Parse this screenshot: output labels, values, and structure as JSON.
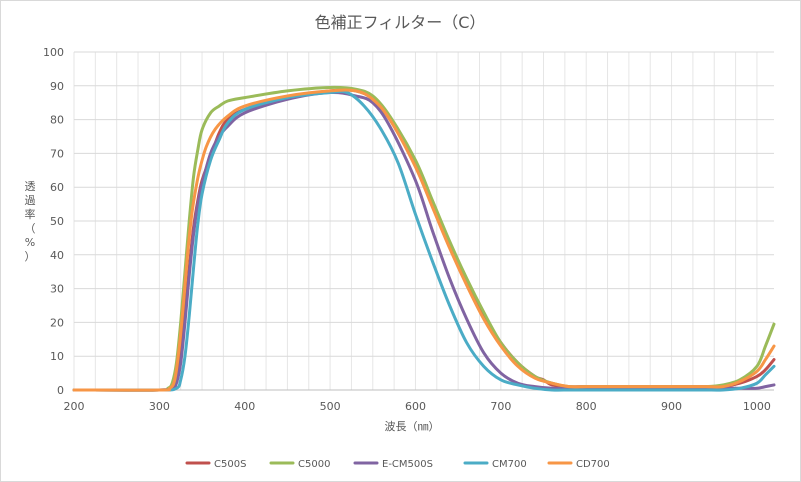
{
  "chart_data": {
    "type": "line",
    "title": "色補正フィルター（C）",
    "xlabel": "波長（㎚）",
    "ylabel": "透過率（%）",
    "xlim": [
      200,
      1020
    ],
    "ylim": [
      0,
      100
    ],
    "x_ticks": [
      200,
      300,
      400,
      500,
      600,
      700,
      800,
      900,
      1000
    ],
    "y_ticks": [
      0,
      10,
      20,
      30,
      40,
      50,
      60,
      70,
      80,
      90,
      100
    ],
    "x_minor_step": 25,
    "grid": true,
    "legend_position": "bottom",
    "series": [
      {
        "name": "C500S",
        "color": "#c0504d",
        "points": [
          [
            200,
            0
          ],
          [
            300,
            0
          ],
          [
            315,
            0.5
          ],
          [
            320,
            3
          ],
          [
            325,
            10
          ],
          [
            330,
            22
          ],
          [
            335,
            36
          ],
          [
            340,
            48
          ],
          [
            345,
            56
          ],
          [
            350,
            62
          ],
          [
            360,
            69
          ],
          [
            370,
            76
          ],
          [
            380,
            80
          ],
          [
            400,
            83
          ],
          [
            450,
            86.5
          ],
          [
            500,
            88.5
          ],
          [
            530,
            88.5
          ],
          [
            550,
            86
          ],
          [
            570,
            80
          ],
          [
            600,
            67
          ],
          [
            620,
            55
          ],
          [
            640,
            43
          ],
          [
            660,
            32
          ],
          [
            680,
            22
          ],
          [
            700,
            14
          ],
          [
            720,
            8
          ],
          [
            740,
            4
          ],
          [
            750,
            3
          ],
          [
            760,
            1.5
          ],
          [
            780,
            1
          ],
          [
            800,
            1
          ],
          [
            820,
            1
          ],
          [
            840,
            1
          ],
          [
            860,
            1
          ],
          [
            880,
            1
          ],
          [
            900,
            1
          ],
          [
            920,
            1
          ],
          [
            940,
            1
          ],
          [
            960,
            1
          ],
          [
            980,
            2
          ],
          [
            1000,
            4
          ],
          [
            1010,
            6
          ],
          [
            1020,
            9
          ]
        ]
      },
      {
        "name": "C5000",
        "color": "#9bbb59",
        "points": [
          [
            200,
            0
          ],
          [
            300,
            0
          ],
          [
            310,
            0.5
          ],
          [
            315,
            2
          ],
          [
            320,
            8
          ],
          [
            325,
            20
          ],
          [
            330,
            35
          ],
          [
            335,
            50
          ],
          [
            340,
            63
          ],
          [
            345,
            71
          ],
          [
            350,
            77
          ],
          [
            360,
            82
          ],
          [
            370,
            84
          ],
          [
            380,
            85.5
          ],
          [
            400,
            86.5
          ],
          [
            450,
            88.5
          ],
          [
            500,
            89.5
          ],
          [
            530,
            89
          ],
          [
            550,
            87
          ],
          [
            570,
            81
          ],
          [
            600,
            68
          ],
          [
            620,
            56
          ],
          [
            640,
            44
          ],
          [
            660,
            33
          ],
          [
            680,
            23
          ],
          [
            700,
            14
          ],
          [
            720,
            8
          ],
          [
            740,
            4
          ],
          [
            760,
            2
          ],
          [
            780,
            1
          ],
          [
            800,
            1
          ],
          [
            820,
            1
          ],
          [
            840,
            1
          ],
          [
            860,
            1
          ],
          [
            880,
            1
          ],
          [
            900,
            1
          ],
          [
            920,
            1
          ],
          [
            940,
            1
          ],
          [
            960,
            1.5
          ],
          [
            980,
            3
          ],
          [
            1000,
            7
          ],
          [
            1010,
            13
          ],
          [
            1020,
            19.5
          ]
        ]
      },
      {
        "name": "E-CM500S",
        "color": "#8064a2",
        "points": [
          [
            200,
            0
          ],
          [
            300,
            0
          ],
          [
            315,
            0.5
          ],
          [
            320,
            2
          ],
          [
            325,
            8
          ],
          [
            330,
            20
          ],
          [
            335,
            34
          ],
          [
            340,
            46
          ],
          [
            345,
            55
          ],
          [
            350,
            61
          ],
          [
            360,
            70
          ],
          [
            370,
            75
          ],
          [
            380,
            78
          ],
          [
            400,
            82
          ],
          [
            450,
            86
          ],
          [
            500,
            88
          ],
          [
            530,
            87
          ],
          [
            550,
            85
          ],
          [
            570,
            78
          ],
          [
            600,
            62
          ],
          [
            620,
            47
          ],
          [
            640,
            33
          ],
          [
            660,
            21
          ],
          [
            680,
            11
          ],
          [
            700,
            5
          ],
          [
            720,
            2
          ],
          [
            740,
            1
          ],
          [
            760,
            0.5
          ],
          [
            780,
            0.5
          ],
          [
            800,
            0.5
          ],
          [
            820,
            0.5
          ],
          [
            840,
            0.5
          ],
          [
            860,
            0.5
          ],
          [
            880,
            0.5
          ],
          [
            900,
            0.5
          ],
          [
            920,
            0.5
          ],
          [
            940,
            0.5
          ],
          [
            960,
            0.5
          ],
          [
            980,
            0.5
          ],
          [
            1000,
            0.5
          ],
          [
            1010,
            1
          ],
          [
            1020,
            1.5
          ]
        ]
      },
      {
        "name": "CM700",
        "color": "#4bacc6",
        "points": [
          [
            200,
            0
          ],
          [
            300,
            0
          ],
          [
            320,
            0.5
          ],
          [
            325,
            3
          ],
          [
            330,
            10
          ],
          [
            335,
            22
          ],
          [
            340,
            36
          ],
          [
            345,
            49
          ],
          [
            350,
            58
          ],
          [
            360,
            68
          ],
          [
            370,
            74
          ],
          [
            380,
            79
          ],
          [
            400,
            83
          ],
          [
            450,
            86.5
          ],
          [
            500,
            88
          ],
          [
            520,
            88
          ],
          [
            540,
            84
          ],
          [
            560,
            77
          ],
          [
            580,
            67
          ],
          [
            600,
            52
          ],
          [
            620,
            38
          ],
          [
            640,
            25
          ],
          [
            660,
            14
          ],
          [
            680,
            7
          ],
          [
            700,
            3
          ],
          [
            720,
            1.5
          ],
          [
            740,
            0.5
          ],
          [
            760,
            0
          ],
          [
            780,
            0
          ],
          [
            800,
            0
          ],
          [
            820,
            0
          ],
          [
            840,
            0
          ],
          [
            860,
            0
          ],
          [
            880,
            0
          ],
          [
            900,
            0
          ],
          [
            920,
            0
          ],
          [
            940,
            0
          ],
          [
            960,
            0
          ],
          [
            980,
            0.5
          ],
          [
            1000,
            2
          ],
          [
            1010,
            4.5
          ],
          [
            1020,
            7
          ]
        ]
      },
      {
        "name": "CD700",
        "color": "#f79646",
        "points": [
          [
            200,
            0
          ],
          [
            300,
            0
          ],
          [
            312,
            0.5
          ],
          [
            318,
            3
          ],
          [
            323,
            12
          ],
          [
            328,
            25
          ],
          [
            333,
            40
          ],
          [
            338,
            52
          ],
          [
            343,
            60
          ],
          [
            348,
            66
          ],
          [
            355,
            72
          ],
          [
            365,
            77
          ],
          [
            380,
            81
          ],
          [
            400,
            84
          ],
          [
            450,
            87
          ],
          [
            500,
            88.5
          ],
          [
            530,
            88.5
          ],
          [
            550,
            86
          ],
          [
            570,
            80
          ],
          [
            600,
            66
          ],
          [
            620,
            54
          ],
          [
            640,
            42
          ],
          [
            660,
            31
          ],
          [
            680,
            21
          ],
          [
            700,
            13
          ],
          [
            720,
            7
          ],
          [
            740,
            3.5
          ],
          [
            760,
            2
          ],
          [
            780,
            1
          ],
          [
            800,
            1
          ],
          [
            820,
            1
          ],
          [
            840,
            1
          ],
          [
            860,
            1
          ],
          [
            880,
            1
          ],
          [
            900,
            1
          ],
          [
            920,
            1
          ],
          [
            940,
            1
          ],
          [
            960,
            1
          ],
          [
            980,
            2.5
          ],
          [
            1000,
            5.5
          ],
          [
            1010,
            9
          ],
          [
            1020,
            13
          ]
        ]
      }
    ]
  }
}
